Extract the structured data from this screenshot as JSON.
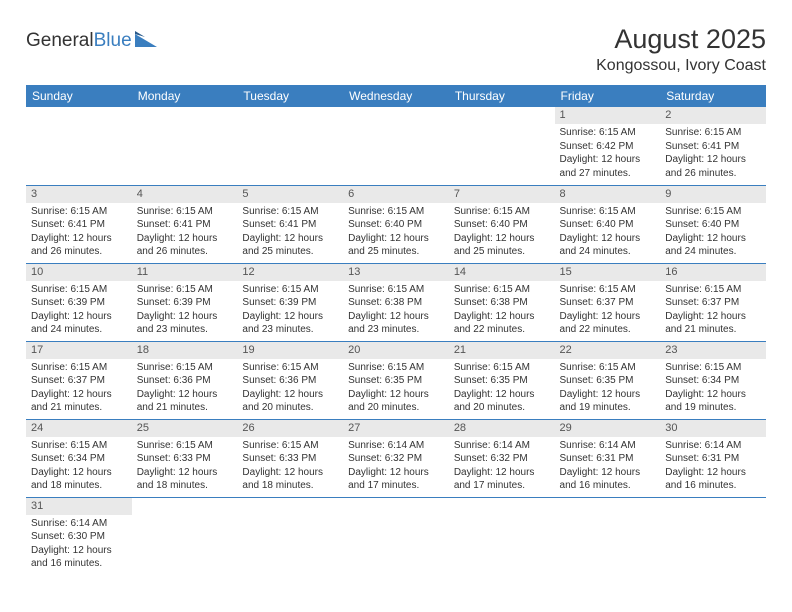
{
  "logo": {
    "text1": "General",
    "text2": "Blue"
  },
  "title": "August 2025",
  "location": "Kongossou, Ivory Coast",
  "colors": {
    "header_bg": "#3a7ebf",
    "header_text": "#ffffff",
    "daynum_bg": "#e9e9e9",
    "row_border": "#3a7ebf",
    "text": "#333333"
  },
  "day_headers": [
    "Sunday",
    "Monday",
    "Tuesday",
    "Wednesday",
    "Thursday",
    "Friday",
    "Saturday"
  ],
  "weeks": [
    [
      {
        "n": "",
        "lines": []
      },
      {
        "n": "",
        "lines": []
      },
      {
        "n": "",
        "lines": []
      },
      {
        "n": "",
        "lines": []
      },
      {
        "n": "",
        "lines": []
      },
      {
        "n": "1",
        "lines": [
          "Sunrise: 6:15 AM",
          "Sunset: 6:42 PM",
          "Daylight: 12 hours",
          "and 27 minutes."
        ]
      },
      {
        "n": "2",
        "lines": [
          "Sunrise: 6:15 AM",
          "Sunset: 6:41 PM",
          "Daylight: 12 hours",
          "and 26 minutes."
        ]
      }
    ],
    [
      {
        "n": "3",
        "lines": [
          "Sunrise: 6:15 AM",
          "Sunset: 6:41 PM",
          "Daylight: 12 hours",
          "and 26 minutes."
        ]
      },
      {
        "n": "4",
        "lines": [
          "Sunrise: 6:15 AM",
          "Sunset: 6:41 PM",
          "Daylight: 12 hours",
          "and 26 minutes."
        ]
      },
      {
        "n": "5",
        "lines": [
          "Sunrise: 6:15 AM",
          "Sunset: 6:41 PM",
          "Daylight: 12 hours",
          "and 25 minutes."
        ]
      },
      {
        "n": "6",
        "lines": [
          "Sunrise: 6:15 AM",
          "Sunset: 6:40 PM",
          "Daylight: 12 hours",
          "and 25 minutes."
        ]
      },
      {
        "n": "7",
        "lines": [
          "Sunrise: 6:15 AM",
          "Sunset: 6:40 PM",
          "Daylight: 12 hours",
          "and 25 minutes."
        ]
      },
      {
        "n": "8",
        "lines": [
          "Sunrise: 6:15 AM",
          "Sunset: 6:40 PM",
          "Daylight: 12 hours",
          "and 24 minutes."
        ]
      },
      {
        "n": "9",
        "lines": [
          "Sunrise: 6:15 AM",
          "Sunset: 6:40 PM",
          "Daylight: 12 hours",
          "and 24 minutes."
        ]
      }
    ],
    [
      {
        "n": "10",
        "lines": [
          "Sunrise: 6:15 AM",
          "Sunset: 6:39 PM",
          "Daylight: 12 hours",
          "and 24 minutes."
        ]
      },
      {
        "n": "11",
        "lines": [
          "Sunrise: 6:15 AM",
          "Sunset: 6:39 PM",
          "Daylight: 12 hours",
          "and 23 minutes."
        ]
      },
      {
        "n": "12",
        "lines": [
          "Sunrise: 6:15 AM",
          "Sunset: 6:39 PM",
          "Daylight: 12 hours",
          "and 23 minutes."
        ]
      },
      {
        "n": "13",
        "lines": [
          "Sunrise: 6:15 AM",
          "Sunset: 6:38 PM",
          "Daylight: 12 hours",
          "and 23 minutes."
        ]
      },
      {
        "n": "14",
        "lines": [
          "Sunrise: 6:15 AM",
          "Sunset: 6:38 PM",
          "Daylight: 12 hours",
          "and 22 minutes."
        ]
      },
      {
        "n": "15",
        "lines": [
          "Sunrise: 6:15 AM",
          "Sunset: 6:37 PM",
          "Daylight: 12 hours",
          "and 22 minutes."
        ]
      },
      {
        "n": "16",
        "lines": [
          "Sunrise: 6:15 AM",
          "Sunset: 6:37 PM",
          "Daylight: 12 hours",
          "and 21 minutes."
        ]
      }
    ],
    [
      {
        "n": "17",
        "lines": [
          "Sunrise: 6:15 AM",
          "Sunset: 6:37 PM",
          "Daylight: 12 hours",
          "and 21 minutes."
        ]
      },
      {
        "n": "18",
        "lines": [
          "Sunrise: 6:15 AM",
          "Sunset: 6:36 PM",
          "Daylight: 12 hours",
          "and 21 minutes."
        ]
      },
      {
        "n": "19",
        "lines": [
          "Sunrise: 6:15 AM",
          "Sunset: 6:36 PM",
          "Daylight: 12 hours",
          "and 20 minutes."
        ]
      },
      {
        "n": "20",
        "lines": [
          "Sunrise: 6:15 AM",
          "Sunset: 6:35 PM",
          "Daylight: 12 hours",
          "and 20 minutes."
        ]
      },
      {
        "n": "21",
        "lines": [
          "Sunrise: 6:15 AM",
          "Sunset: 6:35 PM",
          "Daylight: 12 hours",
          "and 20 minutes."
        ]
      },
      {
        "n": "22",
        "lines": [
          "Sunrise: 6:15 AM",
          "Sunset: 6:35 PM",
          "Daylight: 12 hours",
          "and 19 minutes."
        ]
      },
      {
        "n": "23",
        "lines": [
          "Sunrise: 6:15 AM",
          "Sunset: 6:34 PM",
          "Daylight: 12 hours",
          "and 19 minutes."
        ]
      }
    ],
    [
      {
        "n": "24",
        "lines": [
          "Sunrise: 6:15 AM",
          "Sunset: 6:34 PM",
          "Daylight: 12 hours",
          "and 18 minutes."
        ]
      },
      {
        "n": "25",
        "lines": [
          "Sunrise: 6:15 AM",
          "Sunset: 6:33 PM",
          "Daylight: 12 hours",
          "and 18 minutes."
        ]
      },
      {
        "n": "26",
        "lines": [
          "Sunrise: 6:15 AM",
          "Sunset: 6:33 PM",
          "Daylight: 12 hours",
          "and 18 minutes."
        ]
      },
      {
        "n": "27",
        "lines": [
          "Sunrise: 6:14 AM",
          "Sunset: 6:32 PM",
          "Daylight: 12 hours",
          "and 17 minutes."
        ]
      },
      {
        "n": "28",
        "lines": [
          "Sunrise: 6:14 AM",
          "Sunset: 6:32 PM",
          "Daylight: 12 hours",
          "and 17 minutes."
        ]
      },
      {
        "n": "29",
        "lines": [
          "Sunrise: 6:14 AM",
          "Sunset: 6:31 PM",
          "Daylight: 12 hours",
          "and 16 minutes."
        ]
      },
      {
        "n": "30",
        "lines": [
          "Sunrise: 6:14 AM",
          "Sunset: 6:31 PM",
          "Daylight: 12 hours",
          "and 16 minutes."
        ]
      }
    ],
    [
      {
        "n": "31",
        "lines": [
          "Sunrise: 6:14 AM",
          "Sunset: 6:30 PM",
          "Daylight: 12 hours",
          "and 16 minutes."
        ]
      },
      {
        "n": "",
        "lines": []
      },
      {
        "n": "",
        "lines": []
      },
      {
        "n": "",
        "lines": []
      },
      {
        "n": "",
        "lines": []
      },
      {
        "n": "",
        "lines": []
      },
      {
        "n": "",
        "lines": []
      }
    ]
  ]
}
